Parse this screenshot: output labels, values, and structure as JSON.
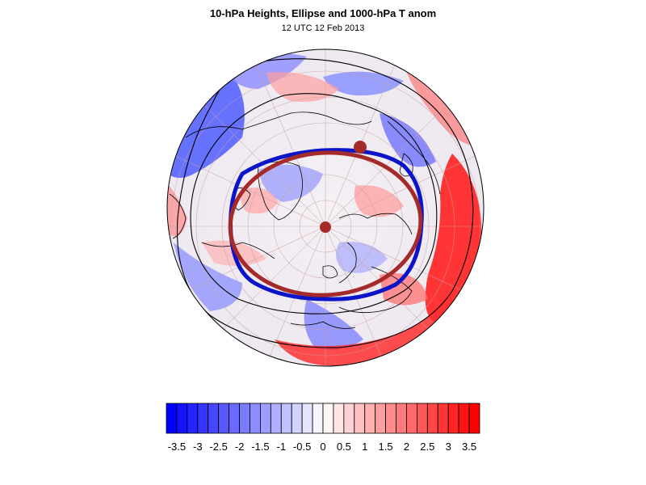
{
  "title": "10-hPa Heights, Ellipse and 1000-hPa T anom",
  "subtitle": "12 UTC 12 Feb 2013",
  "colors": {
    "ellipse_fit": "#a52a2a",
    "vortex_edge": "#0a14c8",
    "contour": "#000000",
    "coast": "#000000",
    "grid": "#c8a0a0",
    "scale_min": "#0000ff",
    "scale_mid": "#ffffff",
    "scale_max": "#ff0000"
  },
  "colorbar": {
    "labels": [
      "-3.5",
      "-3",
      "-2.5",
      "-2",
      "-1.5",
      "-1",
      "-0.5",
      "0",
      "0.5",
      "1",
      "1.5",
      "2",
      "2.5",
      "3",
      "3.5"
    ],
    "min": -3.75,
    "max": 3.75,
    "step": 0.25
  }
}
